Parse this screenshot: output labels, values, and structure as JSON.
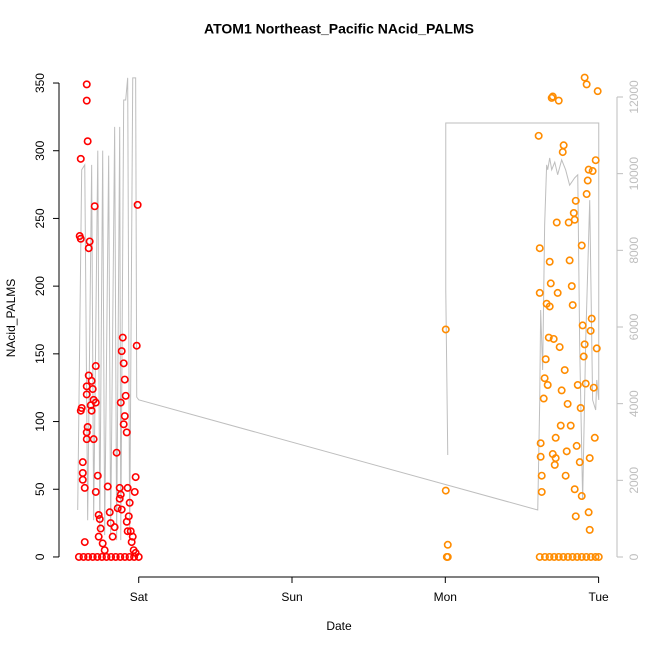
{
  "chart_data": {
    "type": "scatter",
    "title": "ATOM1 Northeast_Pacific NAcid_PALMS",
    "x_label": "Date",
    "y_label": "NAcid_PALMS",
    "xlim": [
      -0.52,
      3.12
    ],
    "xticks": [
      {
        "value": 0,
        "label": "Sat"
      },
      {
        "value": 1,
        "label": "Sun"
      },
      {
        "value": 2,
        "label": "Mon"
      },
      {
        "value": 3,
        "label": "Tue"
      }
    ],
    "ylim": [
      -14.8,
      367
    ],
    "yticks": [
      0,
      50,
      100,
      150,
      200,
      250,
      300,
      350
    ],
    "y2lim": [
      -522,
      12965
    ],
    "y2ticks": [
      0,
      2000,
      4000,
      6000,
      8000,
      10000,
      12000
    ],
    "y2_tick_color": "#bebebe",
    "series": [
      {
        "type": "scatter",
        "color": "#ff0000",
        "x": [
          -0.385,
          -0.378,
          -0.378,
          -0.372,
          -0.378,
          -0.365,
          -0.365,
          -0.365,
          -0.352,
          -0.352,
          -0.339,
          -0.339,
          -0.333,
          -0.32,
          -0.326,
          -0.339,
          -0.339,
          -0.326,
          -0.333,
          -0.339,
          -0.339,
          -0.307,
          -0.3,
          -0.313,
          -0.307,
          -0.294,
          -0.28,
          -0.287,
          -0.28,
          -0.294,
          -0.267,
          -0.28,
          -0.261,
          -0.254,
          -0.248,
          -0.261,
          -0.235,
          -0.222,
          -0.202,
          -0.189,
          -0.183,
          -0.17,
          -0.157,
          -0.137,
          -0.144,
          -0.124,
          -0.124,
          -0.117,
          -0.111,
          -0.117,
          -0.111,
          -0.104,
          -0.098,
          -0.091,
          -0.091,
          -0.098,
          -0.085,
          -0.078,
          -0.078,
          -0.072,
          -0.072,
          -0.059,
          -0.065,
          -0.052,
          -0.046,
          -0.039,
          -0.026,
          -0.02,
          -0.013,
          -0.007,
          -0.033,
          -0.02,
          -0.39,
          -0.36,
          -0.33,
          -0.3,
          -0.27,
          -0.24,
          -0.21,
          -0.18,
          -0.15,
          -0.12,
          -0.09,
          -0.06,
          -0.03,
          0.0
        ],
        "values": [
          237,
          235,
          294,
          110,
          108,
          70,
          62,
          57,
          51,
          11,
          349,
          337,
          307,
          233,
          228,
          126,
          120,
          134,
          96,
          92,
          87,
          130,
          124,
          112,
          108,
          116,
          114,
          259,
          141,
          87,
          60,
          48,
          31,
          28,
          21,
          15,
          10,
          5,
          52,
          33,
          25,
          15,
          22,
          36,
          77,
          51,
          43,
          46,
          35,
          114,
          152,
          162,
          143,
          131,
          104,
          98,
          119,
          92,
          26,
          19,
          51,
          40,
          30,
          19,
          11,
          15,
          48,
          59,
          156,
          260,
          5,
          3,
          0,
          0,
          0,
          0,
          0,
          0,
          0,
          0,
          0,
          0,
          0,
          0,
          0,
          0
        ]
      },
      {
        "type": "scatter",
        "color": "#ff8c00",
        "x": [
          2.003,
          2.003,
          2.016,
          2.01,
          2.016,
          2.609,
          2.616,
          2.616,
          2.622,
          2.622,
          2.629,
          2.629,
          2.642,
          2.648,
          2.655,
          2.661,
          2.668,
          2.675,
          2.681,
          2.681,
          2.688,
          2.694,
          2.701,
          2.701,
          2.707,
          2.714,
          2.72,
          2.72,
          2.727,
          2.733,
          2.74,
          2.746,
          2.753,
          2.759,
          2.766,
          2.772,
          2.779,
          2.785,
          2.792,
          2.798,
          2.805,
          2.811,
          2.818,
          2.825,
          2.831,
          2.838,
          2.844,
          2.851,
          2.857,
          2.864,
          2.877,
          2.883,
          2.89,
          2.89,
          2.896,
          2.903,
          2.909,
          2.916,
          2.922,
          2.929,
          2.935,
          2.942,
          2.948,
          2.955,
          2.961,
          2.968,
          2.975,
          2.981,
          2.988,
          2.909,
          2.922,
          2.994,
          2.935,
          2.942,
          2.844,
          2.851,
          2.616,
          2.65,
          2.68,
          2.71,
          2.74,
          2.77,
          2.8,
          2.83,
          2.86,
          2.89,
          2.92,
          2.95,
          2.98,
          3.001
        ],
        "values": [
          168,
          49,
          9,
          0,
          0,
          311,
          228,
          195,
          84,
          74,
          60,
          48,
          117,
          132,
          146,
          187,
          127,
          162,
          185,
          218,
          202,
          339,
          340,
          76,
          161,
          68,
          73,
          88,
          247,
          195,
          337,
          155,
          97,
          123,
          299,
          304,
          138,
          60,
          78,
          113,
          247,
          219,
          97,
          200,
          186,
          254,
          249,
          263,
          82,
          127,
          70,
          110,
          45,
          230,
          171,
          148,
          157,
          128,
          268,
          278,
          286,
          73,
          167,
          176,
          285,
          125,
          88,
          293,
          154,
          354,
          349,
          344,
          33,
          20,
          50,
          30,
          0,
          0,
          0,
          0,
          0,
          0,
          0,
          0,
          0,
          0,
          0,
          0,
          0,
          0
        ]
      },
      {
        "type": "line",
        "axis": "y2",
        "color": "#bebebe",
        "x": [
          -0.398,
          -0.372,
          -0.352,
          -0.333,
          -0.307,
          -0.294,
          -0.267,
          -0.254,
          -0.235,
          -0.222,
          -0.196,
          -0.183,
          -0.157,
          -0.144,
          -0.124,
          -0.117,
          -0.098,
          -0.085,
          -0.072,
          -0.059,
          -0.039,
          -0.02,
          -0.013,
          0.0,
          2.603,
          2.616,
          2.622,
          2.635,
          2.648,
          2.661,
          2.668,
          2.681,
          2.694,
          2.714,
          2.733,
          2.759,
          2.785,
          2.811,
          2.844,
          2.864,
          2.877,
          2.896,
          2.916,
          2.942,
          2.961,
          2.981,
          2.988,
          3.001,
          3.001,
          2.003,
          2.003,
          2.016
        ],
        "values": [
          1226,
          10100,
          10230,
          960,
          10230,
          960,
          10600,
          700,
          10600,
          570,
          10470,
          570,
          11220,
          440,
          11220,
          440,
          11920,
          11920,
          12500,
          440,
          12500,
          12500,
          4170,
          4100,
          1226,
          4096,
          6444,
          4879,
          8662,
          10230,
          10100,
          10410,
          10100,
          10300,
          9970,
          10360,
          10100,
          9700,
          9890,
          9970,
          5400,
          1487,
          5660,
          9310,
          4096,
          3835,
          4618,
          4096,
          11320,
          11320,
          6966,
          2661
        ]
      }
    ]
  }
}
